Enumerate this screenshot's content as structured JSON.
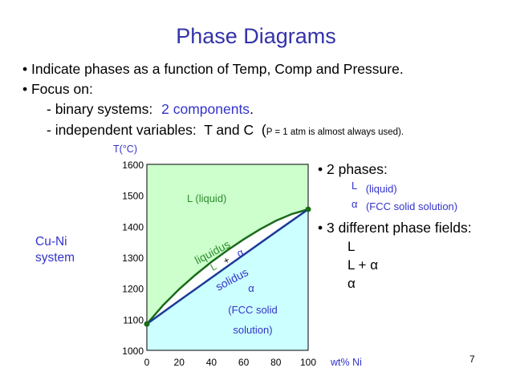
{
  "slide": {
    "title": "Phase Diagrams",
    "bullets": [
      "• Indicate phases as a function of Temp, Comp and Pressure.",
      "• Focus on:"
    ],
    "sub1_prefix": "- binary systems:",
    "sub1_highlight": "2 components",
    "sub1_suffix": ".",
    "sub2_main": "- independent variables:  T and C  (",
    "sub2_note": "P = 1 atm is almost always used).",
    "page_number": "7",
    "system_label_line1": "Cu-Ni",
    "system_label_line2": "system"
  },
  "right_panel": {
    "two_phases_title": "• 2 phases:",
    "phase1_symbol": "L",
    "phase1_desc": "(liquid)",
    "phase2_symbol": "α",
    "phase2_desc": "(FCC solid solution)",
    "three_fields_title": "• 3 different phase fields:",
    "fields": [
      "L",
      "L + α",
      "α"
    ]
  },
  "chart_data": {
    "type": "line",
    "title": "",
    "xlabel": "wt% Ni",
    "ylabel": "T(°C)",
    "xlim": [
      0,
      100
    ],
    "ylim": [
      1000,
      1600
    ],
    "x_ticks": [
      "0",
      "20",
      "40",
      "60",
      "80",
      "100"
    ],
    "y_ticks": [
      "1000",
      "1100",
      "1200",
      "1300",
      "1400",
      "1500",
      "1600"
    ],
    "series": [
      {
        "name": "liquidus",
        "x": [
          0,
          10,
          20,
          30,
          40,
          50,
          60,
          70,
          80,
          90,
          100
        ],
        "y": [
          1085,
          1145,
          1197,
          1243,
          1285,
          1323,
          1358,
          1390,
          1418,
          1440,
          1455
        ]
      },
      {
        "name": "solidus",
        "x": [
          0,
          20,
          40,
          60,
          80,
          100
        ],
        "y": [
          1085,
          1160,
          1234,
          1308,
          1382,
          1455
        ]
      }
    ],
    "region_labels": {
      "liquid": "L (liquid)",
      "two_phase_L": "L",
      "two_phase_plus": "+",
      "two_phase_alpha": "α",
      "solid_alpha": "α",
      "solid_desc_line1": "(FCC solid",
      "solid_desc_line2": "solution)"
    },
    "colors": {
      "liquid_fill": "#ccffcc",
      "solid_fill": "#ccffff",
      "two_phase_fill": "#ffffff",
      "liquidus_line": "#1a6b1a",
      "solidus_line": "#1a3a99",
      "text_green": "#2e8b2e",
      "text_blue": "#3333cc"
    }
  }
}
